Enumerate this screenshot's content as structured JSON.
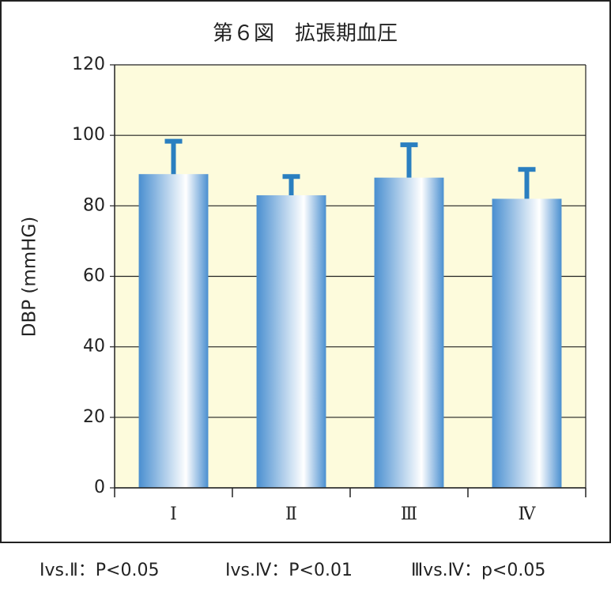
{
  "chart_data": {
    "type": "bar",
    "title": "第６図　拡張期血圧",
    "y_label": "DBP (mmHG)",
    "categories": [
      "Ⅰ",
      "Ⅱ",
      "Ⅲ",
      "Ⅳ"
    ],
    "values": [
      89,
      83,
      88,
      82
    ],
    "errors": [
      10,
      6,
      10,
      9
    ],
    "color": "#4a8fd0",
    "error_color": "#2a7fc0",
    "ylim": [
      0,
      120
    ],
    "yticks": [
      0,
      20,
      40,
      60,
      80,
      100,
      120
    ],
    "grid": true,
    "annotations": [
      "Ⅰvs.Ⅱ：P<0.05",
      "Ⅰvs.Ⅳ：P<0.01",
      "Ⅲvs.Ⅳ：p<0.05"
    ]
  }
}
